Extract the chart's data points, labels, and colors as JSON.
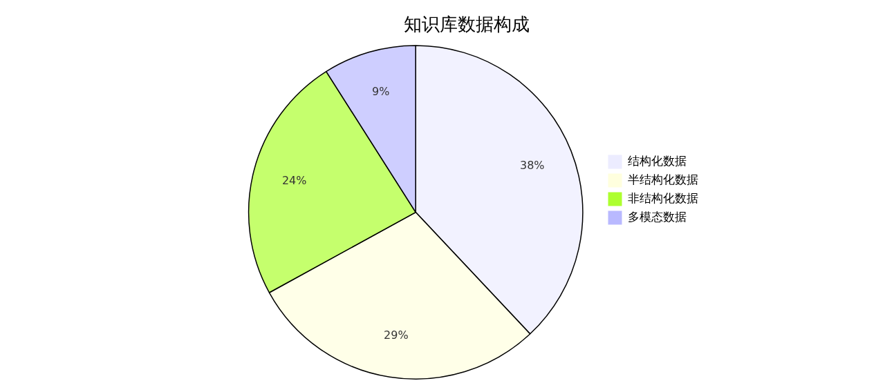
{
  "chart_data": {
    "type": "pie",
    "title": "知识库数据构成",
    "categories": [
      "结构化数据",
      "半结构化数据",
      "非结构化数据",
      "多模态数据"
    ],
    "values": [
      38,
      29,
      24,
      9
    ],
    "value_labels": [
      "38%",
      "29%",
      "24%",
      "9%"
    ],
    "colors": [
      "#ececff",
      "#ffffde",
      "#adff2f",
      "#b9b9ff"
    ],
    "legend": "right"
  }
}
